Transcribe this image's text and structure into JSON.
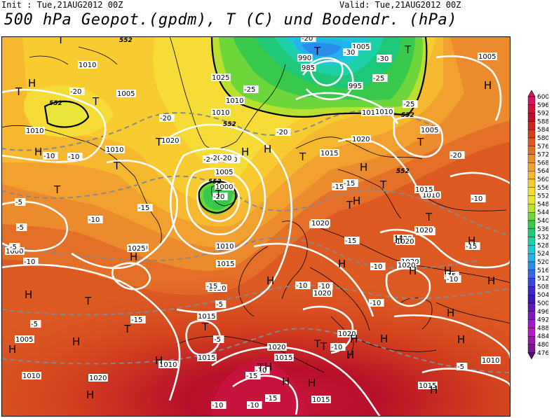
{
  "header": {
    "init": "Init : Tue,21AUG2012 00Z",
    "valid": "Valid: Tue,21AUG2012 00Z",
    "title": "500 hPa Geopot.(gpdm), T (C) und Bodendr. (hPa)"
  },
  "colorscale": {
    "levels": [
      600,
      596,
      592,
      588,
      584,
      580,
      576,
      572,
      568,
      564,
      560,
      556,
      552,
      548,
      544,
      540,
      536,
      532,
      528,
      524,
      520,
      516,
      512,
      508,
      504,
      500,
      496,
      492,
      488,
      484,
      480,
      476
    ],
    "colors": [
      "#d01860",
      "#c8143c",
      "#b8102a",
      "#c42a1c",
      "#d2401e",
      "#dc5a22",
      "#e47028",
      "#ec8a2e",
      "#f2a030",
      "#f6b82e",
      "#f8cc30",
      "#f6dc36",
      "#e8e43a",
      "#b8e030",
      "#6cd63a",
      "#38c84c",
      "#1ec878",
      "#1ed0a8",
      "#1ec8d4",
      "#22b4ea",
      "#2c8cec",
      "#3868e2",
      "#3c46d8",
      "#3a28c8",
      "#4018b0",
      "#6018b8",
      "#8018c0",
      "#a018c8",
      "#b81cc8",
      "#9818a8",
      "#781890",
      "#581070"
    ]
  },
  "map": {
    "pressure_labels": [
      "1010",
      "1005",
      "1025",
      "1010",
      "1010",
      "1020",
      "1010",
      "1005",
      "1000",
      "1010",
      "1015",
      "1020",
      "1025",
      "1020",
      "1015",
      "1020",
      "1020",
      "1020",
      "1020",
      "1020",
      "1020",
      "1015",
      "1010",
      "1015",
      "1005",
      "1010",
      "1000",
      "1005",
      "995",
      "990",
      "985",
      "1005",
      "1015",
      "1010",
      "1020",
      "1020",
      "1020",
      "1020",
      "1015",
      "1010",
      "1020",
      "1015",
      "1010",
      "1015",
      "1005",
      "1010",
      "1015",
      "1020",
      "1020"
    ],
    "temp_labels": [
      "-20",
      "-20",
      "-10",
      "-10",
      "-15",
      "-10",
      "-5",
      "-5",
      "-5",
      "-10",
      "-5",
      "-15",
      "-15",
      "-20",
      "-20",
      "-25",
      "-20",
      "-20",
      "-20",
      "-20",
      "-20",
      "-30",
      "-25",
      "-30",
      "-25",
      "-20",
      "-15",
      "-15",
      "-15",
      "-10",
      "-10",
      "-10",
      "-10",
      "-5",
      "-5",
      "-10",
      "-10",
      "-15",
      "-15",
      "-10",
      "-10",
      "-10",
      "-15",
      "-15",
      "-5",
      "-10"
    ],
    "geopot_labels": [
      "552",
      "552",
      "552",
      "552",
      "552",
      "552"
    ],
    "high_labels": [
      "H",
      "H",
      "H",
      "H",
      "H",
      "H",
      "H",
      "H",
      "H",
      "H",
      "H",
      "H",
      "H",
      "H",
      "H",
      "H",
      "H",
      "H",
      "H",
      "H",
      "H",
      "H",
      "H",
      "H",
      "H",
      "H",
      "H",
      "H",
      "H"
    ],
    "low_labels": [
      "T",
      "T",
      "T",
      "T",
      "T",
      "T",
      "T",
      "T",
      "T",
      "T",
      "T",
      "T",
      "T",
      "T",
      "T",
      "T",
      "T",
      "T",
      "T",
      "T"
    ]
  }
}
